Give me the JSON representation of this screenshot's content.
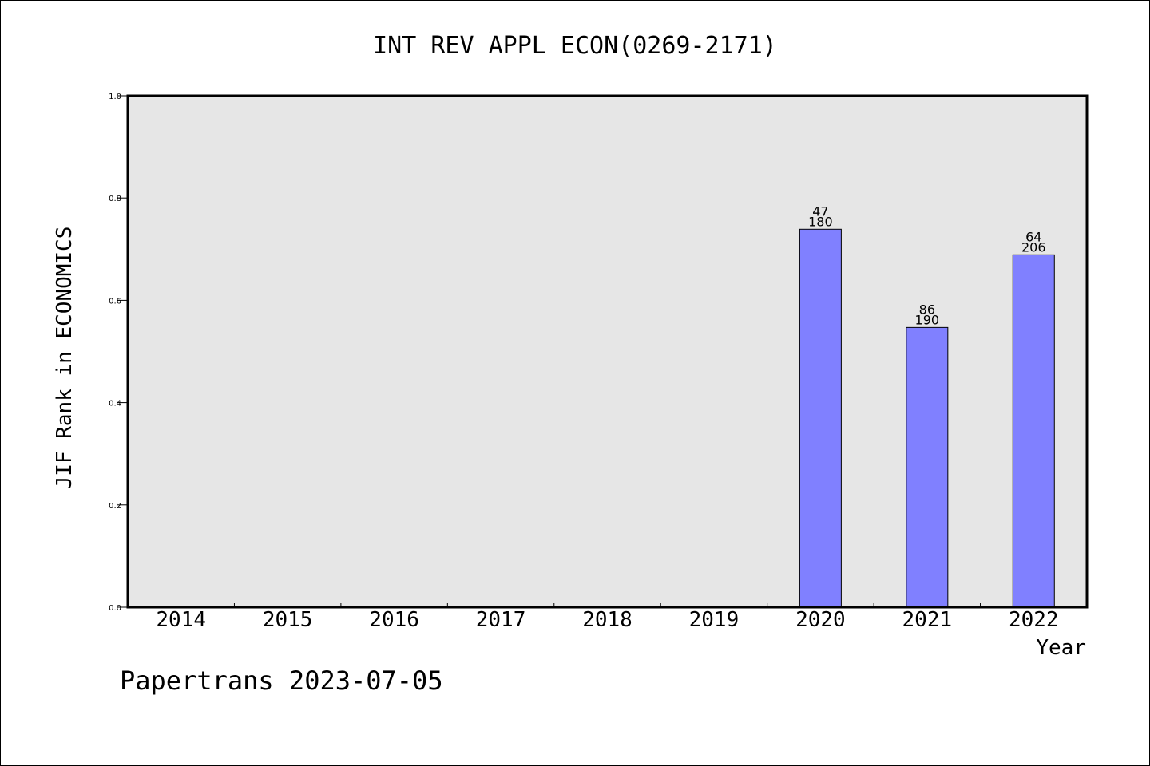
{
  "chart_data": {
    "type": "bar",
    "title": "INT REV APPL ECON(0269-2171)",
    "xlabel": "Year",
    "ylabel": "JIF Rank in ECONOMICS",
    "ylim": [
      0,
      1.0
    ],
    "yticks": [
      "0.0",
      "0.2",
      "0.4",
      "0.6",
      "0.8",
      "1.0"
    ],
    "ytick_values": [
      0.0,
      0.2,
      0.4,
      0.6,
      0.8,
      1.0
    ],
    "categories": [
      "2014",
      "2015",
      "2016",
      "2017",
      "2018",
      "2019",
      "2020",
      "2021",
      "2022"
    ],
    "values": [
      null,
      null,
      null,
      null,
      null,
      null,
      0.739,
      0.547,
      0.689
    ],
    "labels_top": [
      "",
      "",
      "",
      "",
      "",
      "",
      "47",
      "86",
      "64"
    ],
    "labels_bottom": [
      "",
      "",
      "",
      "",
      "",
      "",
      "180",
      "190",
      "206"
    ],
    "grid": false,
    "bar_color": "#8080ff",
    "plot_background": "#e6e6e6"
  },
  "footer": {
    "source": "Papertrans 2023-07-05"
  }
}
